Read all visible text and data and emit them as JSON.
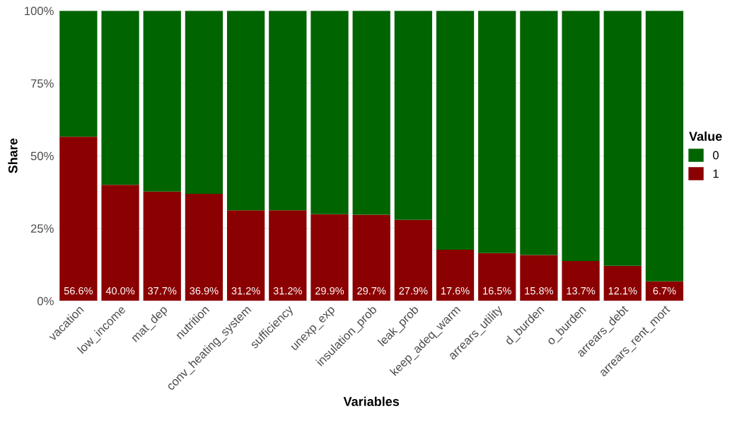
{
  "chart_data": {
    "type": "bar",
    "stacked": true,
    "xlabel": "Variables",
    "ylabel": "Share",
    "legend_title": "Value",
    "legend": "right",
    "categories": [
      "vacation",
      "low_income",
      "mat_dep",
      "nutrition",
      "conv_heating_system",
      "sufficiency",
      "unexp_exp",
      "insulation_prob",
      "leak_prob",
      "keep_adeq_warm",
      "arrears_utility",
      "d_burden",
      "o_burden",
      "arrears_debt",
      "arrears_rent_mort"
    ],
    "series": [
      {
        "name": "1",
        "color": "#8b0000",
        "values": [
          56.6,
          40.0,
          37.7,
          36.9,
          31.2,
          31.2,
          29.9,
          29.7,
          27.9,
          17.6,
          16.5,
          15.8,
          13.7,
          12.1,
          6.7
        ],
        "value_labels": [
          "56.6%",
          "40.0%",
          "37.7%",
          "36.9%",
          "31.2%",
          "31.2%",
          "29.9%",
          "29.7%",
          "27.9%",
          "17.6%",
          "16.5%",
          "15.8%",
          "13.7%",
          "12.1%",
          "6.7%"
        ]
      },
      {
        "name": "0",
        "color": "#006400",
        "values": [
          43.4,
          60.0,
          62.3,
          63.1,
          68.8,
          68.8,
          70.1,
          70.3,
          72.1,
          82.4,
          83.5,
          84.2,
          86.3,
          87.9,
          93.3
        ]
      }
    ],
    "ylim": [
      0,
      100
    ],
    "yticks": [
      {
        "value": 0,
        "label": "0%"
      },
      {
        "value": 25,
        "label": "25%"
      },
      {
        "value": 50,
        "label": "50%"
      },
      {
        "value": 75,
        "label": "75%"
      },
      {
        "value": 100,
        "label": "100%"
      }
    ],
    "grid": "y"
  }
}
